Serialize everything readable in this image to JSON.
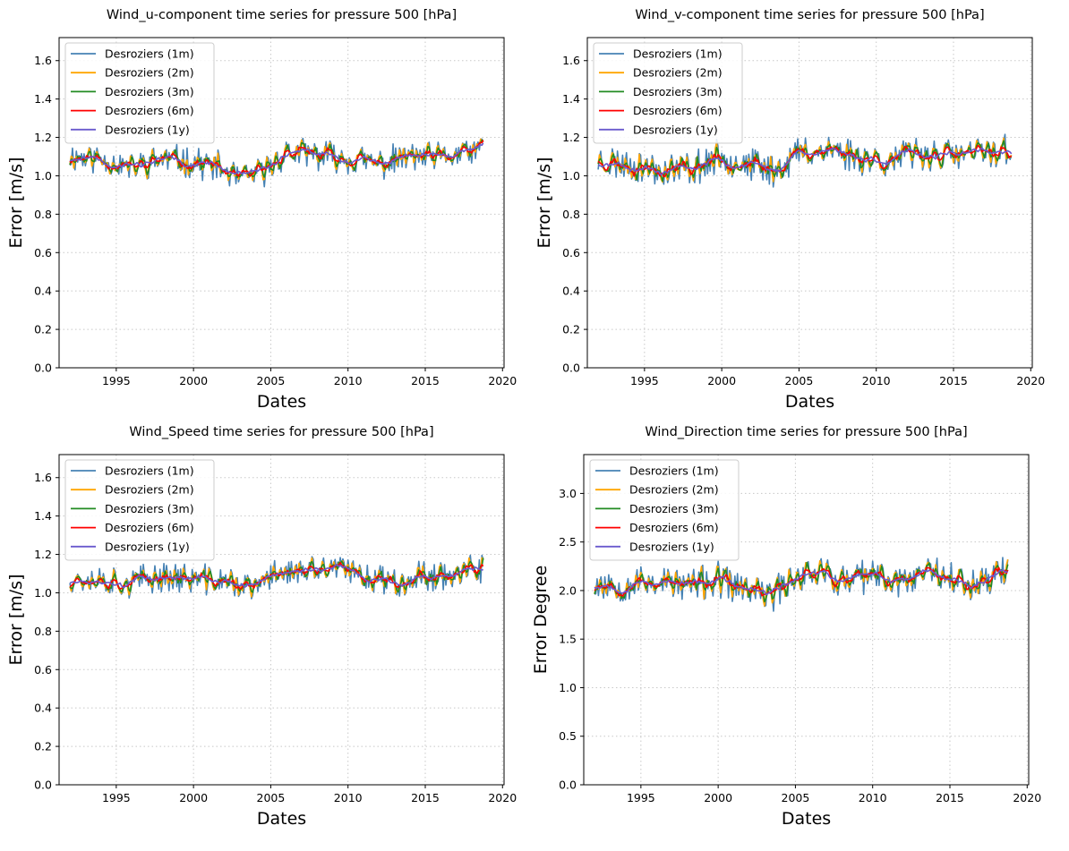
{
  "colors": {
    "Desroziers (1m)": "#4682b4",
    "Desroziers (2m)": "#ffa500",
    "Desroziers (3m)": "#228b22",
    "Desroziers (6m)": "#ff0000",
    "Desroziers (1y)": "#6a5acd"
  },
  "chart_data": [
    {
      "type": "line",
      "title": "Wind_u-component time series for pressure 500 [hPa]",
      "xlabel": "Dates",
      "ylabel": "Error [m/s]",
      "xlim": [
        1991.3,
        2020.1
      ],
      "ylim": [
        0.0,
        1.72
      ],
      "xticks": [
        1995,
        2000,
        2005,
        2010,
        2015,
        2020
      ],
      "yticks": [
        0.0,
        0.2,
        0.4,
        0.6,
        0.8,
        1.0,
        1.2,
        1.4,
        1.6
      ],
      "ytick_labels": [
        "0.0",
        "0.2",
        "0.4",
        "0.6",
        "0.8",
        "1.0",
        "1.2",
        "1.4",
        "1.6"
      ],
      "grid": true,
      "legend_position": "top-left",
      "trend_x": [
        1992,
        1994,
        1996,
        1998,
        2000,
        2001.5,
        2003,
        2004.5,
        2006,
        2008,
        2010,
        2012,
        2014,
        2016,
        2018.8
      ],
      "trend_y": [
        1.1,
        1.09,
        1.04,
        1.09,
        1.07,
        1.05,
        0.98,
        1.02,
        1.12,
        1.11,
        1.09,
        1.06,
        1.1,
        1.09,
        1.14
      ],
      "noise_amp": 0.07,
      "seed": 11,
      "series": [
        {
          "name": "Desroziers (1m)",
          "window": 1
        },
        {
          "name": "Desroziers (2m)",
          "window": 2
        },
        {
          "name": "Desroziers (3m)",
          "window": 3
        },
        {
          "name": "Desroziers (6m)",
          "window": 6
        },
        {
          "name": "Desroziers (1y)",
          "window": 12
        }
      ]
    },
    {
      "type": "line",
      "title": "Wind_v-component time series for pressure 500 [hPa]",
      "xlabel": "Dates",
      "ylabel": "Error [m/s]",
      "xlim": [
        1991.3,
        2020.1
      ],
      "ylim": [
        0.0,
        1.72
      ],
      "xticks": [
        1995,
        2000,
        2005,
        2010,
        2015,
        2020
      ],
      "yticks": [
        0.0,
        0.2,
        0.4,
        0.6,
        0.8,
        1.0,
        1.2,
        1.4,
        1.6
      ],
      "ytick_labels": [
        "0.0",
        "0.2",
        "0.4",
        "0.6",
        "0.8",
        "1.0",
        "1.2",
        "1.4",
        "1.6"
      ],
      "grid": true,
      "legend_position": "top-left",
      "trend_x": [
        1992,
        1994,
        1996,
        1998,
        2000,
        2002,
        2003.5,
        2005,
        2007,
        2009,
        2011,
        2013,
        2015,
        2017,
        2018.8
      ],
      "trend_y": [
        1.08,
        1.06,
        1.03,
        1.04,
        1.1,
        1.05,
        1.03,
        1.12,
        1.14,
        1.1,
        1.08,
        1.12,
        1.1,
        1.12,
        1.14
      ],
      "noise_amp": 0.08,
      "seed": 23,
      "series": [
        {
          "name": "Desroziers (1m)",
          "window": 1
        },
        {
          "name": "Desroziers (2m)",
          "window": 2
        },
        {
          "name": "Desroziers (3m)",
          "window": 3
        },
        {
          "name": "Desroziers (6m)",
          "window": 6
        },
        {
          "name": "Desroziers (1y)",
          "window": 12
        }
      ]
    },
    {
      "type": "line",
      "title": "Wind_Speed time series for pressure 500 [hPa]",
      "xlabel": "Dates",
      "ylabel": "Error [m/s]",
      "xlim": [
        1991.3,
        2020.1
      ],
      "ylim": [
        0.0,
        1.72
      ],
      "xticks": [
        1995,
        2000,
        2005,
        2010,
        2015,
        2020
      ],
      "yticks": [
        0.0,
        0.2,
        0.4,
        0.6,
        0.8,
        1.0,
        1.2,
        1.4,
        1.6
      ],
      "ytick_labels": [
        "0.0",
        "0.2",
        "0.4",
        "0.6",
        "0.8",
        "1.0",
        "1.2",
        "1.4",
        "1.6"
      ],
      "grid": true,
      "legend_position": "top-left",
      "trend_x": [
        1992,
        1994,
        1996,
        1998,
        2000,
        2002,
        2004,
        2005.5,
        2007,
        2009,
        2011,
        2013,
        2015,
        2017,
        2018.8
      ],
      "trend_y": [
        1.08,
        1.07,
        1.05,
        1.09,
        1.07,
        1.06,
        1.02,
        1.12,
        1.1,
        1.13,
        1.09,
        1.06,
        1.09,
        1.1,
        1.12
      ],
      "noise_amp": 0.07,
      "seed": 37,
      "series": [
        {
          "name": "Desroziers (1m)",
          "window": 1
        },
        {
          "name": "Desroziers (2m)",
          "window": 2
        },
        {
          "name": "Desroziers (3m)",
          "window": 3
        },
        {
          "name": "Desroziers (6m)",
          "window": 6
        },
        {
          "name": "Desroziers (1y)",
          "window": 12
        }
      ]
    },
    {
      "type": "line",
      "title": "Wind_Direction time series for pressure 500 [hPa]",
      "xlabel": "Dates",
      "ylabel": "Error Degree",
      "xlim": [
        1991.3,
        2020.1
      ],
      "ylim": [
        0.0,
        3.4
      ],
      "xticks": [
        1995,
        2000,
        2005,
        2010,
        2015,
        2020
      ],
      "yticks": [
        0.0,
        0.5,
        1.0,
        1.5,
        2.0,
        2.5,
        3.0
      ],
      "ytick_labels": [
        "0.0",
        "0.5",
        "1.0",
        "1.5",
        "2.0",
        "2.5",
        "3.0"
      ],
      "grid": true,
      "legend_position": "top-left",
      "trend_x": [
        1992,
        1994,
        1996,
        1998,
        2000,
        2002,
        2003.5,
        2005,
        2006.5,
        2008,
        2010,
        2012,
        2014,
        2016,
        2018.8
      ],
      "trend_y": [
        2.08,
        2.06,
        2.1,
        2.05,
        2.1,
        2.0,
        1.95,
        2.15,
        2.22,
        2.08,
        2.15,
        2.1,
        2.25,
        2.05,
        2.22
      ],
      "noise_amp": 0.16,
      "seed": 53,
      "series": [
        {
          "name": "Desroziers (1m)",
          "window": 1
        },
        {
          "name": "Desroziers (2m)",
          "window": 2
        },
        {
          "name": "Desroziers (3m)",
          "window": 3
        },
        {
          "name": "Desroziers (6m)",
          "window": 6
        },
        {
          "name": "Desroziers (1y)",
          "window": 12
        }
      ]
    }
  ]
}
